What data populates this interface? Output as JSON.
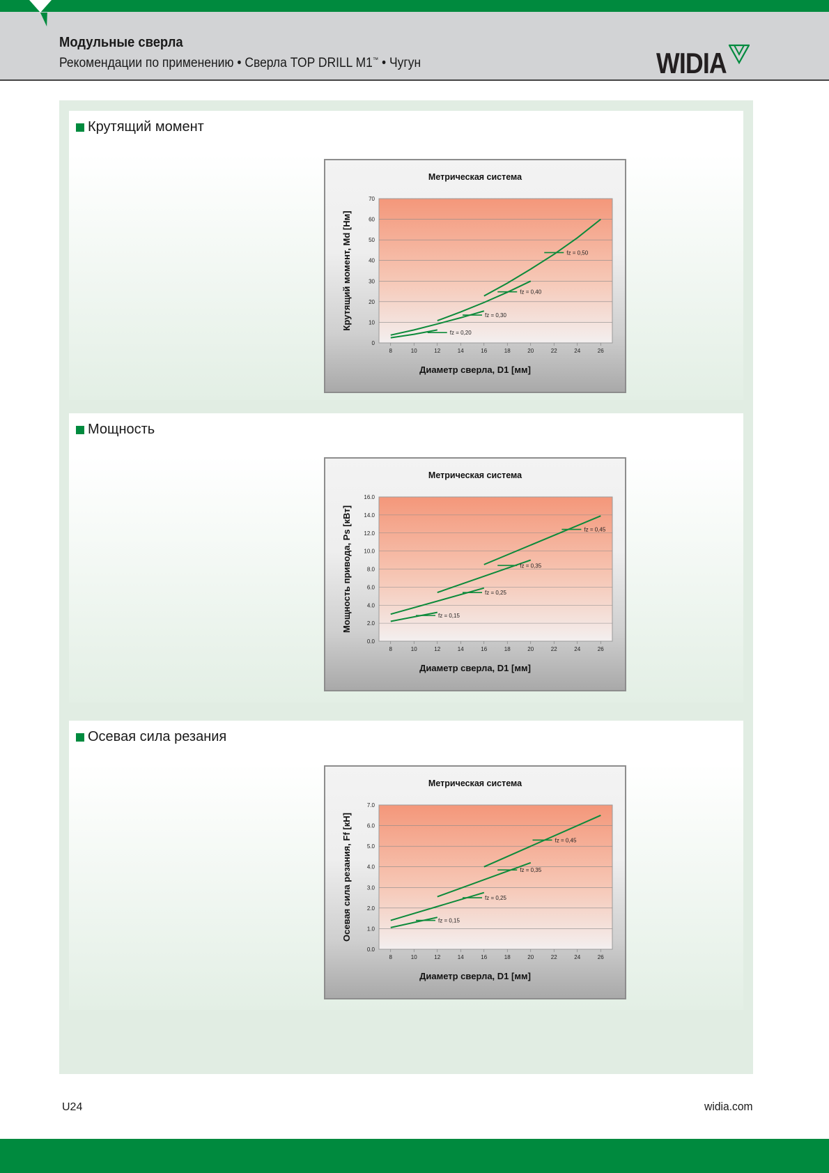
{
  "header": {
    "title": "Модульные сверла",
    "subtitle_main": "Рекомендации по применению • Сверла TOP DRILL M1",
    "subtitle_tm": "™",
    "subtitle_tail": " • Чугун",
    "logo_text": "WIDIA"
  },
  "colors": {
    "brand_green": "#008a3e",
    "header_gray": "#d2d3d5",
    "panel_green": "#e1ede3",
    "plot_top": "#f4977a",
    "plot_bottom": "#f3efef",
    "line_green": "#0c8a3a"
  },
  "sections": [
    {
      "heading": "Крутящий момент"
    },
    {
      "heading": "Мощность"
    },
    {
      "heading": "Осевая сила резания"
    }
  ],
  "footer": {
    "page": "U24",
    "site": "widia.com"
  },
  "chart_data": [
    {
      "type": "line",
      "title": "Метрическая система",
      "xlabel": "Диаметр сверла, D1 [мм]",
      "ylabel": "Крутящий момент, Md [Нм]",
      "x_ticks": [
        "8",
        "10",
        "12",
        "14",
        "16",
        "18",
        "20",
        "22",
        "24",
        "26"
      ],
      "y_ticks": [
        "0",
        "10",
        "20",
        "30",
        "40",
        "50",
        "60",
        "70"
      ],
      "xlim": [
        7,
        27
      ],
      "ylim": [
        0,
        70
      ],
      "grid": true,
      "series": [
        {
          "label": "fz = 0,20",
          "x": [
            8,
            10,
            12
          ],
          "y": [
            2.5,
            4.2,
            6.3
          ],
          "label_at": [
            12,
            5
          ]
        },
        {
          "label": "fz = 0,30",
          "x": [
            8,
            10,
            12,
            14,
            16
          ],
          "y": [
            3.8,
            6.3,
            9.2,
            12.2,
            15.5
          ],
          "label_at": [
            15,
            13.5
          ]
        },
        {
          "label": "fz = 0,40",
          "x": [
            12,
            14,
            16,
            18,
            20
          ],
          "y": [
            10.8,
            15.0,
            19.6,
            24.6,
            30.0
          ],
          "label_at": [
            18,
            24.8
          ]
        },
        {
          "label": "fz = 0,50",
          "x": [
            16,
            18,
            20,
            22,
            24,
            26
          ],
          "y": [
            22.8,
            29.0,
            35.8,
            43.0,
            51.0,
            60.0
          ],
          "label_at": [
            22,
            43.8
          ]
        }
      ]
    },
    {
      "type": "line",
      "title": "Метрическая система",
      "xlabel": "Диаметр сверла, D1 [мм]",
      "ylabel": "Мощность привода, Ps [кВт]",
      "x_ticks": [
        "8",
        "10",
        "12",
        "14",
        "16",
        "18",
        "20",
        "22",
        "24",
        "26"
      ],
      "y_ticks": [
        "0.0",
        "2.0",
        "4.0",
        "6.0",
        "8.0",
        "10.0",
        "12.0",
        "14.0",
        "16.0"
      ],
      "xlim": [
        7,
        27
      ],
      "ylim": [
        0,
        16
      ],
      "grid": true,
      "series": [
        {
          "label": "fz = 0,15",
          "x": [
            8,
            12
          ],
          "y": [
            2.2,
            3.2
          ],
          "label_at": [
            11,
            2.85
          ]
        },
        {
          "label": "fz = 0,25",
          "x": [
            8,
            16
          ],
          "y": [
            3.0,
            5.9
          ],
          "label_at": [
            15,
            5.4
          ]
        },
        {
          "label": "fz = 0,35",
          "x": [
            12,
            20
          ],
          "y": [
            5.4,
            9.0
          ],
          "label_at": [
            18,
            8.4
          ]
        },
        {
          "label": "fz = 0,45",
          "x": [
            16,
            26
          ],
          "y": [
            8.5,
            13.9
          ],
          "label_at": [
            23.5,
            12.4
          ]
        }
      ]
    },
    {
      "type": "line",
      "title": "Метрическая система",
      "xlabel": "Диаметр сверла, D1 [мм]",
      "ylabel": "Осевая сила резания, Ff [кН]",
      "x_ticks": [
        "8",
        "10",
        "12",
        "14",
        "16",
        "18",
        "20",
        "22",
        "24",
        "26"
      ],
      "y_ticks": [
        "0.0",
        "1.0",
        "2.0",
        "3.0",
        "4.0",
        "5.0",
        "6.0",
        "7.0"
      ],
      "xlim": [
        7,
        27
      ],
      "ylim": [
        0,
        7
      ],
      "grid": true,
      "series": [
        {
          "label": "fz = 0,15",
          "x": [
            8,
            12
          ],
          "y": [
            1.05,
            1.55
          ],
          "label_at": [
            11,
            1.4
          ]
        },
        {
          "label": "fz = 0,25",
          "x": [
            8,
            16
          ],
          "y": [
            1.4,
            2.75
          ],
          "label_at": [
            15,
            2.5
          ]
        },
        {
          "label": "fz = 0,35",
          "x": [
            12,
            20
          ],
          "y": [
            2.55,
            4.2
          ],
          "label_at": [
            18,
            3.85
          ]
        },
        {
          "label": "fz = 0,45",
          "x": [
            16,
            26
          ],
          "y": [
            4.0,
            6.5
          ],
          "label_at": [
            21,
            5.3
          ]
        }
      ]
    }
  ]
}
